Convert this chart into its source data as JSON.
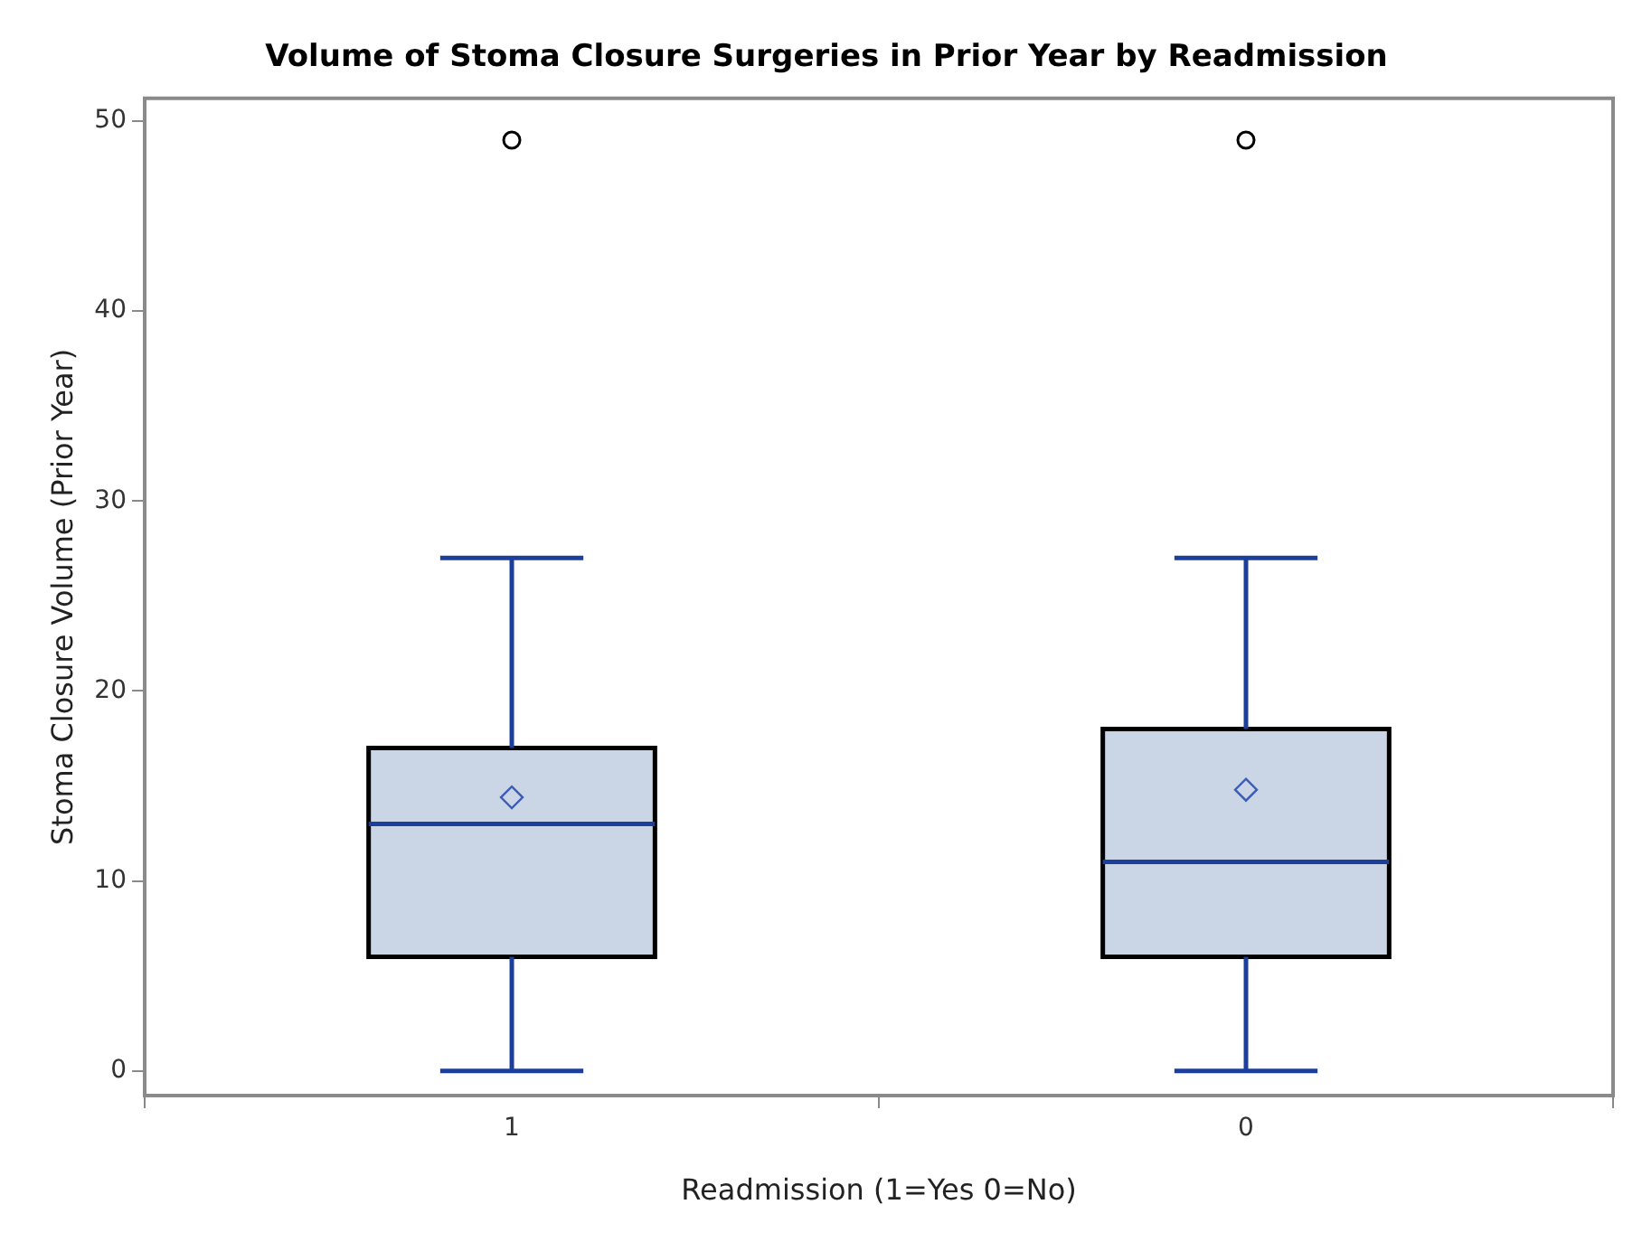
{
  "chart_data": {
    "type": "box",
    "title": "Volume of Stoma Closure Surgeries in Prior Year by Readmission",
    "xlabel": "Readmission (1=Yes 0=No)",
    "ylabel": "Stoma Closure Volume (Prior Year)",
    "categories": [
      "1",
      "0"
    ],
    "color": "#cad5e6",
    "boxes": [
      {
        "low": 0,
        "q1": 6,
        "median": 13,
        "q3": 17,
        "high": 27,
        "mean": 14.4,
        "outliers": [
          49
        ]
      },
      {
        "low": 0,
        "q1": 6,
        "median": 11,
        "q3": 18,
        "high": 27,
        "mean": 14.8,
        "outliers": [
          49
        ]
      }
    ],
    "ylim": [
      -1.3,
      51.2
    ],
    "yticks": [
      0,
      10,
      20,
      30,
      40,
      50
    ],
    "grid": false,
    "marker": "circle"
  }
}
